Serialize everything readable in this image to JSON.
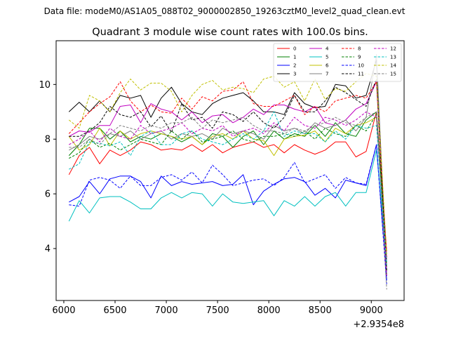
{
  "page": {
    "suptitle": "Data file: modeM0/AS1A05_088T02_9000002850_19263cztM0_level2_quad_clean.evt"
  },
  "chart_data": {
    "type": "line",
    "title": "Quadrant 3 module wise count rates with 100.0s bins.",
    "xlabel": "",
    "ylabel": "",
    "x_offset_label": "+2.9354e8",
    "xlim": [
      5925,
      9320
    ],
    "ylim": [
      2.1,
      11.6
    ],
    "xticks": [
      6000,
      6500,
      7000,
      7500,
      8000,
      8500,
      9000
    ],
    "yticks": [
      4,
      6,
      8,
      10
    ],
    "grid": false,
    "legend_position": "top-right",
    "x": [
      6050,
      6150,
      6250,
      6350,
      6450,
      6550,
      6650,
      6750,
      6850,
      6950,
      7050,
      7150,
      7250,
      7350,
      7450,
      7550,
      7650,
      7750,
      7850,
      7950,
      8050,
      8150,
      8250,
      8350,
      8450,
      8550,
      8650,
      8750,
      8850,
      8950,
      9050,
      9150
    ],
    "series": [
      {
        "name": "0",
        "color": "#ff0000",
        "dash": false,
        "values": [
          6.7,
          7.4,
          7.7,
          7.1,
          7.6,
          7.4,
          7.6,
          7.9,
          7.8,
          7.6,
          7.65,
          7.6,
          7.8,
          7.55,
          7.8,
          7.5,
          7.7,
          7.8,
          7.9,
          7.7,
          7.8,
          7.5,
          7.8,
          7.6,
          7.45,
          7.6,
          7.9,
          7.9,
          7.35,
          7.55,
          9.0,
          3.9
        ]
      },
      {
        "name": "1",
        "color": "#008000",
        "dash": false,
        "values": [
          7.4,
          7.8,
          8.4,
          8.4,
          8.0,
          8.3,
          7.9,
          8.1,
          8.0,
          8.2,
          8.1,
          7.9,
          8.1,
          7.8,
          8.2,
          8.1,
          7.7,
          8.1,
          8.3,
          7.8,
          8.3,
          8.0,
          8.2,
          8.1,
          8.5,
          8.1,
          8.6,
          8.2,
          8.1,
          8.7,
          9.0,
          3.5
        ]
      },
      {
        "name": "2",
        "color": "#0000ff",
        "dash": false,
        "values": [
          5.7,
          5.9,
          6.45,
          6.0,
          6.55,
          6.65,
          6.65,
          6.45,
          5.85,
          6.65,
          6.3,
          6.45,
          6.35,
          6.4,
          6.45,
          6.3,
          6.35,
          6.7,
          5.6,
          6.1,
          6.35,
          6.55,
          6.6,
          6.45,
          5.95,
          6.2,
          5.85,
          6.5,
          6.4,
          6.3,
          7.8,
          2.85
        ]
      },
      {
        "name": "3",
        "color": "#000000",
        "dash": false,
        "values": [
          9.0,
          9.35,
          9.0,
          9.4,
          9.0,
          9.6,
          9.5,
          9.6,
          8.8,
          9.5,
          9.9,
          9.3,
          9.0,
          8.9,
          9.3,
          9.5,
          9.6,
          9.7,
          9.4,
          9.0,
          9.0,
          8.9,
          9.7,
          9.3,
          9.15,
          9.2,
          10.0,
          9.95,
          9.5,
          9.6,
          10.9,
          3.0
        ]
      },
      {
        "name": "4",
        "color": "#c000c0",
        "dash": false,
        "values": [
          8.1,
          8.3,
          8.25,
          8.5,
          8.5,
          9.2,
          9.25,
          8.6,
          9.3,
          9.1,
          9.0,
          8.7,
          9.0,
          8.6,
          8.85,
          8.9,
          8.6,
          8.8,
          9.1,
          8.9,
          9.25,
          9.25,
          9.1,
          9.0,
          9.2,
          8.6,
          8.5,
          8.7,
          9.1,
          9.3,
          10.1,
          3.6
        ]
      },
      {
        "name": "5",
        "color": "#00c0c0",
        "dash": false,
        "values": [
          5.0,
          5.75,
          5.3,
          5.85,
          5.9,
          5.9,
          5.7,
          5.45,
          5.45,
          5.85,
          6.05,
          5.85,
          6.05,
          6.0,
          5.55,
          6.0,
          5.7,
          5.65,
          5.7,
          5.75,
          5.2,
          5.75,
          5.55,
          5.9,
          5.55,
          5.9,
          6.05,
          5.55,
          6.05,
          6.05,
          7.6,
          3.5
        ]
      },
      {
        "name": "6",
        "color": "#c0c000",
        "dash": false,
        "values": [
          8.1,
          7.6,
          7.8,
          8.4,
          7.75,
          8.3,
          8.0,
          8.2,
          8.3,
          8.2,
          8.1,
          8.0,
          8.1,
          7.8,
          8.1,
          8.2,
          8.0,
          8.3,
          8.0,
          7.95,
          7.4,
          8.0,
          8.1,
          8.15,
          8.3,
          7.9,
          8.4,
          8.2,
          8.5,
          8.6,
          8.8,
          3.4
        ]
      },
      {
        "name": "7",
        "color": "#808080",
        "dash": false,
        "values": [
          7.6,
          7.8,
          8.1,
          8.0,
          8.2,
          8.1,
          8.3,
          8.0,
          8.2,
          8.3,
          8.0,
          8.2,
          8.1,
          8.2,
          8.0,
          8.4,
          8.2,
          8.3,
          8.2,
          8.0,
          8.5,
          8.3,
          8.4,
          8.2,
          8.6,
          8.4,
          8.5,
          8.7,
          8.3,
          8.8,
          11.1,
          3.1
        ]
      },
      {
        "name": "8",
        "color": "#ff0000",
        "dash": true,
        "values": [
          8.2,
          8.6,
          9.0,
          9.3,
          9.55,
          10.1,
          9.4,
          9.0,
          9.25,
          9.0,
          8.95,
          9.5,
          9.1,
          9.55,
          9.4,
          9.75,
          9.8,
          10.1,
          9.3,
          9.2,
          9.2,
          9.4,
          9.6,
          8.9,
          9.2,
          9.0,
          9.4,
          9.5,
          9.6,
          9.5,
          10.1,
          3.7
        ]
      },
      {
        "name": "9",
        "color": "#008000",
        "dash": true,
        "values": [
          7.3,
          7.5,
          8.0,
          7.7,
          7.85,
          7.6,
          7.8,
          8.0,
          7.9,
          7.8,
          8.3,
          8.0,
          8.3,
          7.9,
          8.0,
          8.1,
          8.3,
          8.0,
          7.9,
          8.1,
          8.1,
          8.2,
          8.1,
          8.3,
          8.0,
          8.4,
          8.2,
          8.1,
          8.5,
          8.3,
          8.9,
          3.2
        ]
      },
      {
        "name": "10",
        "color": "#0000ff",
        "dash": true,
        "values": [
          5.6,
          5.55,
          6.5,
          6.6,
          6.5,
          6.2,
          6.65,
          6.3,
          6.3,
          6.6,
          6.7,
          6.5,
          6.8,
          6.4,
          7.05,
          6.7,
          6.3,
          6.4,
          6.5,
          6.55,
          6.3,
          6.6,
          7.15,
          6.4,
          6.55,
          6.7,
          6.2,
          6.6,
          6.4,
          6.35,
          7.8,
          2.7
        ]
      },
      {
        "name": "11",
        "color": "#000000",
        "dash": true,
        "values": [
          8.1,
          8.1,
          8.3,
          8.6,
          9.2,
          8.9,
          8.8,
          9.0,
          8.45,
          8.85,
          8.25,
          9.3,
          8.7,
          8.8,
          8.4,
          9.0,
          8.9,
          8.65,
          9.0,
          8.6,
          8.4,
          8.8,
          9.6,
          9.0,
          9.0,
          9.4,
          9.9,
          9.7,
          9.45,
          9.2,
          10.2,
          3.2
        ]
      },
      {
        "name": "12",
        "color": "#c000c0",
        "dash": true,
        "values": [
          7.8,
          8.0,
          8.3,
          7.9,
          8.4,
          8.1,
          8.0,
          8.5,
          8.2,
          8.3,
          8.4,
          8.6,
          8.2,
          8.4,
          8.3,
          8.5,
          8.1,
          8.3,
          8.4,
          8.2,
          8.6,
          8.3,
          8.8,
          8.5,
          8.4,
          8.8,
          8.7,
          8.5,
          8.7,
          9.0,
          8.8,
          3.0
        ]
      },
      {
        "name": "13",
        "color": "#00c0c0",
        "dash": true,
        "values": [
          6.9,
          7.1,
          7.9,
          7.85,
          7.75,
          7.9,
          7.4,
          8.1,
          8.3,
          7.8,
          7.8,
          8.2,
          8.3,
          8.0,
          7.9,
          7.8,
          8.0,
          8.2,
          8.0,
          8.3,
          9.0,
          8.1,
          8.3,
          8.2,
          8.2,
          7.9,
          8.3,
          8.0,
          8.5,
          8.4,
          8.5,
          3.4
        ]
      },
      {
        "name": "14",
        "color": "#c0c000",
        "dash": true,
        "values": [
          8.7,
          8.4,
          9.6,
          9.4,
          9.0,
          9.7,
          10.2,
          9.8,
          10.05,
          10.05,
          9.75,
          9.0,
          9.6,
          10.0,
          10.15,
          9.8,
          9.9,
          9.85,
          9.7,
          10.2,
          10.3,
          9.9,
          10.1,
          9.4,
          10.2,
          9.45,
          9.85,
          9.75,
          10.1,
          10.4,
          10.3,
          3.8
        ]
      },
      {
        "name": "15",
        "color": "#808080",
        "dash": true,
        "values": [
          7.7,
          7.7,
          8.0,
          7.8,
          8.2,
          8.5,
          8.4,
          8.3,
          8.5,
          8.4,
          8.6,
          8.6,
          8.8,
          8.4,
          8.7,
          8.6,
          8.7,
          8.8,
          8.5,
          8.3,
          8.3,
          8.2,
          8.4,
          8.3,
          8.5,
          8.6,
          8.8,
          8.6,
          8.5,
          8.8,
          9.0,
          2.5
        ]
      }
    ]
  }
}
